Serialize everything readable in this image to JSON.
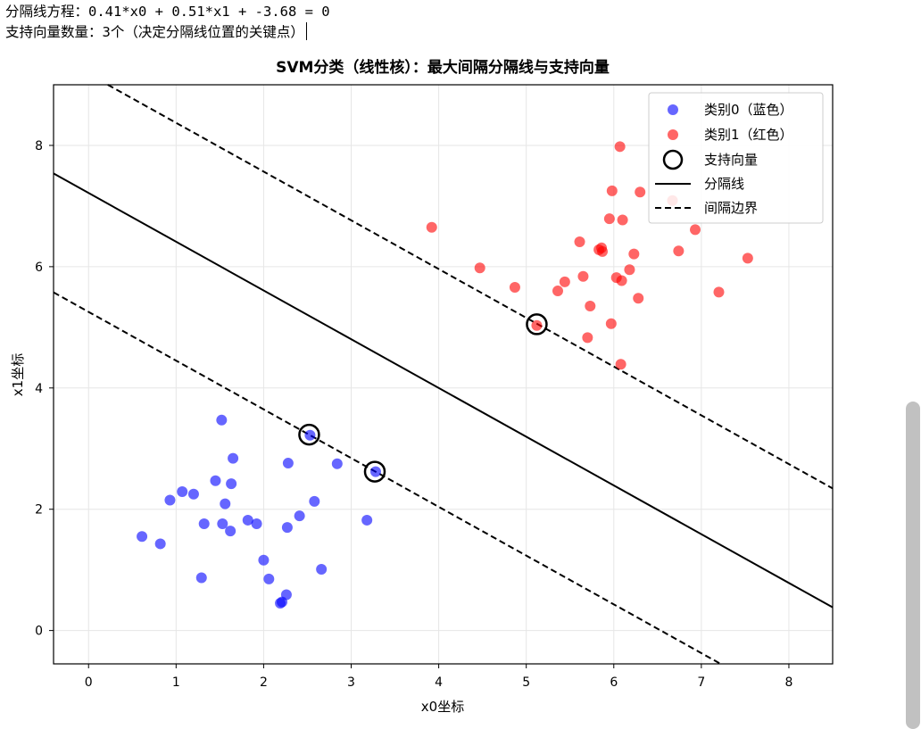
{
  "console": {
    "line1": "分隔线方程：0.41*x0 + 0.51*x1 + -3.68 = 0",
    "line2": "支持向量数量：3个（决定分隔线位置的关键点）"
  },
  "chart_data": {
    "type": "scatter",
    "title": "SVM分类（线性核）：最大间隔分隔线与支持向量",
    "xlabel": "x0坐标",
    "ylabel": "x1坐标",
    "xlim": [
      -0.4,
      8.5
    ],
    "ylim": [
      -0.55,
      9.0
    ],
    "xticks": [
      0,
      1,
      2,
      3,
      4,
      5,
      6,
      7,
      8
    ],
    "yticks": [
      0,
      2,
      4,
      6,
      8
    ],
    "grid": true,
    "legend_position": "top-right",
    "colors": {
      "class0": "#0000ff",
      "class1": "#ff0000",
      "line": "#000000",
      "grid": "#e6e6e6"
    },
    "series": [
      {
        "name": "类别0（蓝色）",
        "points": [
          [
            0.61,
            1.55
          ],
          [
            0.82,
            1.43
          ],
          [
            0.93,
            2.15
          ],
          [
            1.07,
            2.29
          ],
          [
            1.2,
            2.25
          ],
          [
            1.29,
            0.87
          ],
          [
            1.32,
            1.76
          ],
          [
            1.45,
            2.47
          ],
          [
            1.52,
            3.47
          ],
          [
            1.53,
            1.76
          ],
          [
            1.56,
            2.09
          ],
          [
            1.62,
            1.64
          ],
          [
            1.63,
            2.42
          ],
          [
            1.65,
            2.84
          ],
          [
            1.82,
            1.82
          ],
          [
            1.92,
            1.76
          ],
          [
            2.0,
            1.16
          ],
          [
            2.06,
            0.85
          ],
          [
            2.19,
            0.45
          ],
          [
            2.21,
            0.47
          ],
          [
            2.26,
            0.59
          ],
          [
            2.27,
            1.7
          ],
          [
            2.28,
            2.76
          ],
          [
            2.41,
            1.89
          ],
          [
            2.53,
            3.22
          ],
          [
            2.58,
            2.13
          ],
          [
            2.66,
            1.01
          ],
          [
            2.84,
            2.75
          ],
          [
            3.18,
            1.82
          ],
          [
            3.28,
            2.62
          ]
        ]
      },
      {
        "name": "类别1（红色）",
        "points": [
          [
            3.92,
            6.65
          ],
          [
            4.47,
            5.98
          ],
          [
            4.87,
            5.66
          ],
          [
            5.12,
            5.03
          ],
          [
            5.36,
            5.6
          ],
          [
            5.44,
            5.75
          ],
          [
            5.61,
            6.41
          ],
          [
            5.65,
            5.84
          ],
          [
            5.7,
            4.83
          ],
          [
            5.73,
            5.35
          ],
          [
            5.83,
            6.28
          ],
          [
            5.86,
            6.31
          ],
          [
            5.87,
            6.25
          ],
          [
            5.95,
            6.79
          ],
          [
            5.97,
            5.06
          ],
          [
            5.98,
            7.25
          ],
          [
            6.03,
            5.82
          ],
          [
            6.07,
            7.98
          ],
          [
            6.08,
            4.39
          ],
          [
            6.09,
            5.77
          ],
          [
            6.1,
            6.77
          ],
          [
            6.18,
            5.95
          ],
          [
            6.23,
            6.21
          ],
          [
            6.28,
            5.48
          ],
          [
            6.3,
            7.23
          ],
          [
            6.67,
            7.09
          ],
          [
            6.74,
            6.26
          ],
          [
            6.93,
            6.61
          ],
          [
            7.2,
            5.58
          ],
          [
            7.53,
            6.14
          ]
        ]
      }
    ],
    "support_vectors": [
      [
        5.12,
        5.05
      ],
      [
        2.52,
        3.23
      ],
      [
        3.27,
        2.62
      ]
    ],
    "hyperplane": {
      "w0": 0.41,
      "w1": 0.51,
      "b": -3.68
    },
    "legend": [
      "类别0（蓝色）",
      "类别1（红色）",
      "支持向量",
      "分隔线",
      "间隔边界"
    ]
  }
}
